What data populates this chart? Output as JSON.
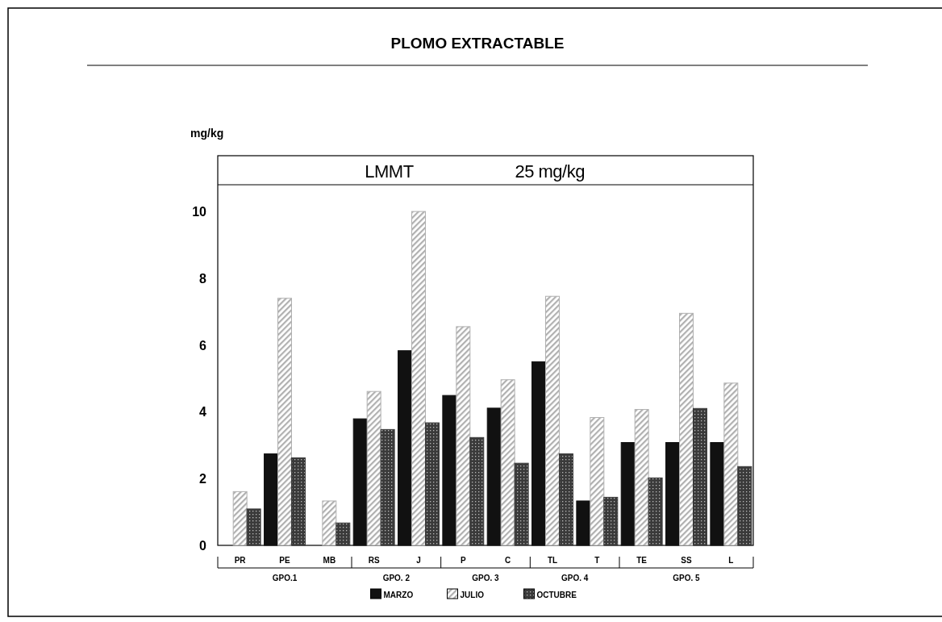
{
  "chart_data": {
    "type": "bar",
    "title": "PLOMO EXTRACTABLE",
    "ylabel": "mg/kg",
    "categories": [
      "PR",
      "PE",
      "MB",
      "RS",
      "J",
      "P",
      "C",
      "TL",
      "T",
      "TE",
      "SS",
      "L"
    ],
    "series": [
      {
        "name": "MARZO",
        "color": "#111111",
        "values": [
          null,
          2.74,
          null,
          3.79,
          5.83,
          4.49,
          4.11,
          5.5,
          1.33,
          3.08,
          3.08,
          3.08
        ]
      },
      {
        "name": "JULIO",
        "color": "#b0b0b0",
        "values": [
          1.61,
          7.4,
          1.33,
          4.61,
          10.0,
          6.55,
          4.96,
          7.46,
          3.83,
          4.07,
          6.95,
          4.86
        ]
      },
      {
        "name": "OCTUBRE",
        "color": "#3a3a3a",
        "values": [
          1.09,
          2.62,
          0.67,
          3.47,
          3.67,
          3.23,
          2.46,
          2.74,
          1.44,
          2.02,
          4.1,
          2.36
        ]
      }
    ],
    "ylim": [
      0,
      10.8
    ],
    "yticks": [
      0,
      2,
      4,
      6,
      8,
      10
    ],
    "grid": false,
    "legend": "bottom",
    "annotations": [
      "LMMT",
      "25 mg/kg",
      "GPO.1",
      "GPO. 2",
      "GPO. 3",
      "GPO. 4",
      "GPO. 5"
    ]
  }
}
